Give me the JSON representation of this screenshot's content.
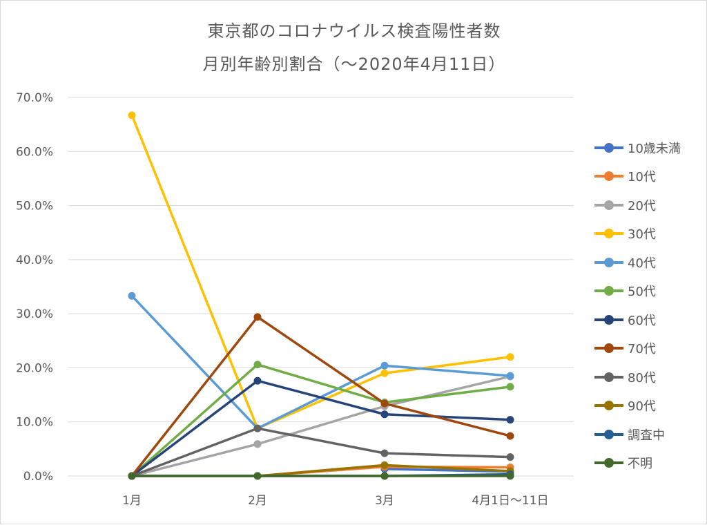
{
  "title_line1": "東京都のコロナウイルス検査陽性者数",
  "title_line2": "月別年齢別割合（～2020年4月11日）",
  "chart_data": {
    "type": "line",
    "title": "東京都のコロナウイルス検査陽性者数 月別年齢別割合（～2020年4月11日）",
    "categories": [
      "1月",
      "2月",
      "3月",
      "4月1日～11日"
    ],
    "ylim": [
      0,
      70
    ],
    "y_ticks": [
      "0.0%",
      "10.0%",
      "20.0%",
      "30.0%",
      "40.0%",
      "50.0%",
      "60.0%",
      "70.0%"
    ],
    "y_format": "percent",
    "grid": true,
    "legend_position": "right",
    "series": [
      {
        "name": "10歳未満",
        "color": "#4472C4",
        "values": [
          null,
          null,
          1.3,
          0.8
        ]
      },
      {
        "name": "10代",
        "color": "#ED7D31",
        "values": [
          null,
          0.0,
          1.7,
          1.6
        ]
      },
      {
        "name": "20代",
        "color": "#A5A5A5",
        "values": [
          0.0,
          5.9,
          12.9,
          18.4
        ]
      },
      {
        "name": "30代",
        "color": "#FFC000",
        "values": [
          66.7,
          8.8,
          19.0,
          22.0
        ]
      },
      {
        "name": "40代",
        "color": "#5B9BD5",
        "values": [
          33.3,
          8.8,
          20.4,
          18.5
        ]
      },
      {
        "name": "50代",
        "color": "#70AD47",
        "values": [
          0.0,
          20.6,
          13.6,
          16.5
        ]
      },
      {
        "name": "60代",
        "color": "#264478",
        "values": [
          0.0,
          17.6,
          11.4,
          10.4
        ]
      },
      {
        "name": "70代",
        "color": "#9E480E",
        "values": [
          0.0,
          29.4,
          13.4,
          7.4
        ]
      },
      {
        "name": "80代",
        "color": "#636363",
        "values": [
          0.0,
          8.8,
          4.2,
          3.5
        ]
      },
      {
        "name": "90代",
        "color": "#997300",
        "values": [
          0.0,
          0.0,
          2.0,
          0.9
        ]
      },
      {
        "name": "調査中",
        "color": "#255E91",
        "values": [
          0.0,
          0.0,
          0.0,
          0.3
        ]
      },
      {
        "name": "不明",
        "color": "#43682B",
        "values": [
          0.0,
          0.0,
          0.0,
          0.0
        ]
      }
    ]
  }
}
